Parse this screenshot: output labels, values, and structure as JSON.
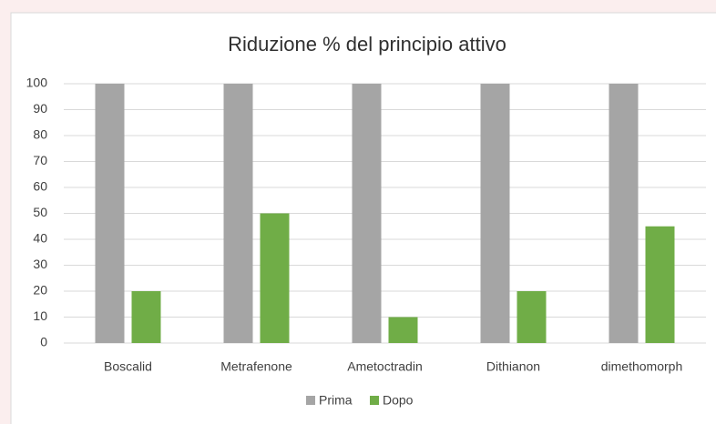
{
  "chart_data": {
    "type": "bar",
    "title": "Riduzione % del principio attivo",
    "categories": [
      "Boscalid",
      "Metrafenone",
      "Ametoctradin",
      "Dithianon",
      "dimethomorph"
    ],
    "series": [
      {
        "name": "Prima",
        "color": "#a5a5a5",
        "values": [
          100,
          100,
          100,
          100,
          100
        ]
      },
      {
        "name": "Dopo",
        "color": "#70ad47",
        "values": [
          20,
          50,
          10,
          20,
          45
        ]
      }
    ],
    "ylim": [
      0,
      100
    ],
    "yticks": [
      0,
      10,
      20,
      30,
      40,
      50,
      60,
      70,
      80,
      90,
      100
    ],
    "grid": true,
    "legend": "bottom"
  }
}
